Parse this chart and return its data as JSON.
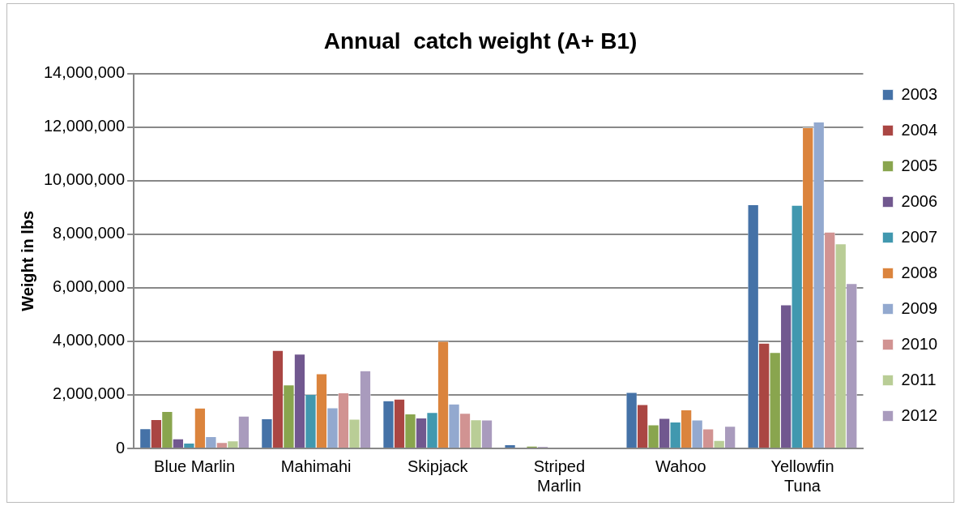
{
  "chart_data": {
    "type": "bar",
    "title": "Annual  catch weight (A+ B1)",
    "ylabel": "Weight in lbs",
    "categories": [
      "Blue Marlin",
      "Mahimahi",
      "Skipjack",
      "Striped Marlin",
      "Wahoo",
      "Yellowfin Tuna"
    ],
    "series": [
      {
        "name": "2003",
        "color": "#4572a7",
        "values": [
          740000,
          1110000,
          1780000,
          140000,
          2090000,
          9100000
        ]
      },
      {
        "name": "2004",
        "color": "#aa4643",
        "values": [
          1080000,
          3660000,
          1840000,
          30000,
          1640000,
          3930000
        ]
      },
      {
        "name": "2005",
        "color": "#89a54e",
        "values": [
          1380000,
          2370000,
          1290000,
          90000,
          880000,
          3580000
        ]
      },
      {
        "name": "2006",
        "color": "#71588f",
        "values": [
          360000,
          3520000,
          1140000,
          60000,
          1120000,
          5360000
        ]
      },
      {
        "name": "2007",
        "color": "#4198af",
        "values": [
          200000,
          2020000,
          1340000,
          30000,
          990000,
          9080000
        ]
      },
      {
        "name": "2008",
        "color": "#db843d",
        "values": [
          1510000,
          2790000,
          4000000,
          0,
          1440000,
          11980000
        ]
      },
      {
        "name": "2009",
        "color": "#93a9cf",
        "values": [
          440000,
          1520000,
          1660000,
          0,
          1060000,
          12190000
        ]
      },
      {
        "name": "2010",
        "color": "#d19392",
        "values": [
          220000,
          2080000,
          1310000,
          0,
          730000,
          8080000
        ]
      },
      {
        "name": "2011",
        "color": "#b9cd96",
        "values": [
          280000,
          1090000,
          1070000,
          0,
          300000,
          7640000
        ]
      },
      {
        "name": "2012",
        "color": "#a99bbd",
        "values": [
          1210000,
          2900000,
          1060000,
          0,
          830000,
          6160000
        ]
      }
    ],
    "ylim": [
      0,
      14000000
    ],
    "yticks": [
      {
        "value": 0,
        "label": "0"
      },
      {
        "value": 2000000,
        "label": "2,000,000"
      },
      {
        "value": 4000000,
        "label": "4,000,000"
      },
      {
        "value": 6000000,
        "label": "6,000,000"
      },
      {
        "value": 8000000,
        "label": "8,000,000"
      },
      {
        "value": 10000000,
        "label": "10,000,000"
      },
      {
        "value": 12000000,
        "label": "12,000,000"
      },
      {
        "value": 14000000,
        "label": "14,000,000"
      }
    ],
    "grid": "y",
    "legend": "right"
  }
}
